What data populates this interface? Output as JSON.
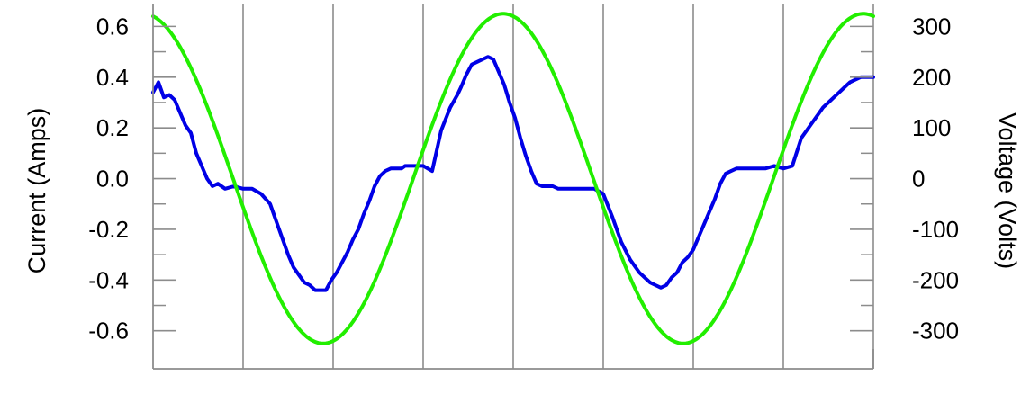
{
  "chart_data": {
    "type": "line",
    "title": "",
    "xlabel": "",
    "ylabel": "Current (Amps)",
    "y2label": "Voltage (Volts)",
    "grid": true,
    "legend": "none",
    "ylim": [
      -0.75,
      0.69
    ],
    "y2lim": [
      -375,
      345
    ],
    "yticks": [
      -0.6,
      -0.4,
      -0.2,
      0.0,
      0.2,
      0.4,
      0.6
    ],
    "yticklabels": [
      "-0.6",
      "-0.4",
      "-0.2",
      "0.0",
      "0.2",
      "0.4",
      "0.6"
    ],
    "y2ticks": [
      -300,
      -200,
      -100,
      0,
      100,
      200,
      300
    ],
    "y2ticklabels": [
      "-300",
      "-200",
      "-100",
      "0",
      "100",
      "200",
      "300"
    ],
    "xlim": [
      0,
      8
    ],
    "xgrid": [
      1,
      2,
      3,
      4,
      5,
      6,
      7,
      8
    ],
    "series": [
      {
        "axis": "left",
        "color": "#0000e6",
        "x": [
          0,
          0.06,
          0.12,
          0.18,
          0.24,
          0.3,
          0.36,
          0.42,
          0.48,
          0.54,
          0.6,
          0.66,
          0.72,
          0.8,
          0.9,
          1.0,
          1.1,
          1.2,
          1.3,
          1.38,
          1.44,
          1.5,
          1.56,
          1.62,
          1.68,
          1.74,
          1.8,
          1.86,
          1.92,
          1.98,
          2.04,
          2.1,
          2.16,
          2.22,
          2.28,
          2.34,
          2.4,
          2.46,
          2.52,
          2.58,
          2.64,
          2.7,
          2.76,
          2.8,
          2.9,
          3.0,
          3.1,
          3.2,
          3.3,
          3.38,
          3.42,
          3.48,
          3.54,
          3.6,
          3.66,
          3.72,
          3.78,
          3.84,
          3.9,
          3.96,
          4.02,
          4.08,
          4.14,
          4.2,
          4.26,
          4.32,
          4.38,
          4.44,
          4.5,
          4.56,
          4.62,
          4.68,
          4.72,
          4.8,
          4.9,
          5.0,
          5.1,
          5.2,
          5.3,
          5.4,
          5.46,
          5.52,
          5.58,
          5.64,
          5.7,
          5.76,
          5.82,
          5.88,
          5.94,
          6.0,
          6.06,
          6.12,
          6.18,
          6.24,
          6.3,
          6.36,
          6.42,
          6.48,
          6.54,
          6.6,
          6.64,
          6.72,
          6.8,
          6.9,
          7.0,
          7.1,
          7.2,
          7.32,
          7.38,
          7.44,
          7.5,
          7.56,
          7.62,
          7.68,
          7.74,
          7.8,
          7.86,
          7.92,
          8.0
        ],
        "values": [
          0.34,
          0.38,
          0.32,
          0.33,
          0.31,
          0.26,
          0.21,
          0.18,
          0.1,
          0.05,
          0.0,
          -0.03,
          -0.02,
          -0.04,
          -0.03,
          -0.04,
          -0.04,
          -0.06,
          -0.1,
          -0.18,
          -0.24,
          -0.3,
          -0.35,
          -0.38,
          -0.41,
          -0.42,
          -0.44,
          -0.44,
          -0.44,
          -0.4,
          -0.37,
          -0.33,
          -0.29,
          -0.24,
          -0.2,
          -0.14,
          -0.09,
          -0.03,
          0.01,
          0.03,
          0.04,
          0.04,
          0.04,
          0.05,
          0.05,
          0.05,
          0.03,
          0.19,
          0.28,
          0.33,
          0.36,
          0.41,
          0.45,
          0.46,
          0.47,
          0.48,
          0.47,
          0.42,
          0.37,
          0.3,
          0.24,
          0.16,
          0.09,
          0.03,
          -0.02,
          -0.03,
          -0.03,
          -0.03,
          -0.04,
          -0.04,
          -0.04,
          -0.04,
          -0.04,
          -0.04,
          -0.04,
          -0.06,
          -0.15,
          -0.25,
          -0.32,
          -0.37,
          -0.39,
          -0.41,
          -0.42,
          -0.43,
          -0.42,
          -0.39,
          -0.37,
          -0.33,
          -0.31,
          -0.28,
          -0.23,
          -0.18,
          -0.13,
          -0.08,
          -0.02,
          0.02,
          0.03,
          0.04,
          0.04,
          0.04,
          0.04,
          0.04,
          0.04,
          0.05,
          0.04,
          0.05,
          0.16,
          0.22,
          0.25,
          0.28,
          0.3,
          0.32,
          0.34,
          0.36,
          0.38,
          0.39,
          0.4,
          0.4,
          0.4
        ]
      },
      {
        "axis": "right",
        "color": "#22ee00",
        "function": "sine",
        "amplitude": 325,
        "phase_deg": 100,
        "cycles": 2,
        "x_range": [
          0,
          8
        ]
      }
    ]
  }
}
